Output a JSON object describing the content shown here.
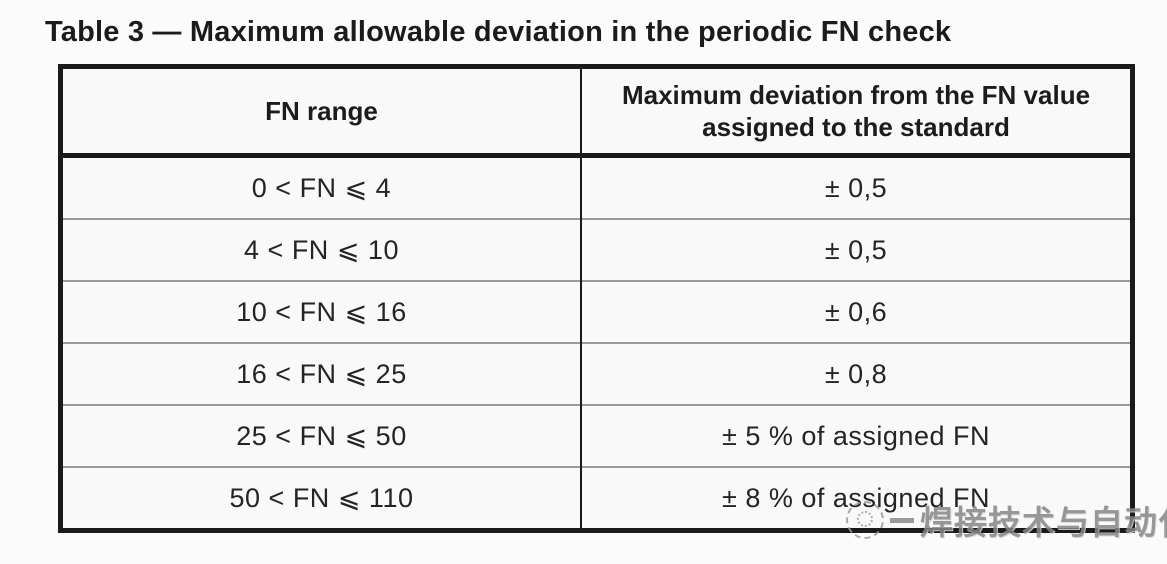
{
  "document": {
    "title": "Table 3 — Maximum allowable deviation in the periodic FN check"
  },
  "table": {
    "columns": [
      {
        "header": "FN range"
      },
      {
        "header": "Maximum deviation from the FN value assigned to the standard"
      }
    ],
    "rows": [
      {
        "fn_range": "0 < FN ⩽ 4",
        "max_deviation": "± 0,5"
      },
      {
        "fn_range": "4 < FN ⩽ 10",
        "max_deviation": "± 0,5"
      },
      {
        "fn_range": "10 < FN ⩽ 16",
        "max_deviation": "± 0,6"
      },
      {
        "fn_range": "16 < FN ⩽ 25",
        "max_deviation": "± 0,8"
      },
      {
        "fn_range": "25 < FN ⩽ 50",
        "max_deviation": "± 5 % of assigned FN"
      },
      {
        "fn_range": "50 < FN ⩽ 110",
        "max_deviation": "± 8 % of assigned FN"
      }
    ],
    "colors": {
      "outer_border": "#1a1a1a",
      "row_separator": "#9a9a9a",
      "column_divider": "#4d4d4d",
      "text": "#242424"
    }
  },
  "watermark": {
    "text": "焊接技术与自动化",
    "color": "#868686"
  }
}
